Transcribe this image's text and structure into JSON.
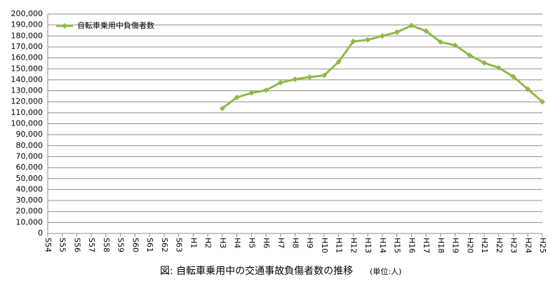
{
  "chart_data": {
    "type": "line",
    "categories": [
      "S54",
      "S55",
      "S56",
      "S57",
      "S58",
      "S59",
      "S60",
      "S61",
      "S62",
      "S63",
      "H1",
      "H2",
      "H3",
      "H4",
      "H5",
      "H6",
      "H7",
      "H8",
      "H9",
      "H10",
      "H11",
      "H12",
      "H13",
      "H14",
      "H15",
      "H16",
      "H17",
      "H18",
      "H19",
      "H20",
      "H21",
      "H22",
      "H23",
      "H24",
      "H25"
    ],
    "series": [
      {
        "name": "自転車乗用中負傷者数",
        "color": "#8fb848",
        "values": [
          null,
          null,
          null,
          null,
          null,
          null,
          null,
          null,
          null,
          null,
          null,
          null,
          114000,
          124000,
          128000,
          130500,
          137500,
          140500,
          142500,
          144000,
          156500,
          175000,
          176500,
          180000,
          183500,
          189500,
          184500,
          174500,
          171500,
          162500,
          155500,
          151000,
          143000,
          131500,
          120000
        ]
      }
    ],
    "ylim": [
      0,
      200000
    ],
    "yticks": [
      {
        "value": 0,
        "label": "0"
      },
      {
        "value": 10000,
        "label": "10,000"
      },
      {
        "value": 20000,
        "label": "20,000"
      },
      {
        "value": 30000,
        "label": "30,000"
      },
      {
        "value": 40000,
        "label": "40,000"
      },
      {
        "value": 50000,
        "label": "50,000"
      },
      {
        "value": 60000,
        "label": "60,000"
      },
      {
        "value": 70000,
        "label": "70,000"
      },
      {
        "value": 80000,
        "label": "80,000"
      },
      {
        "value": 90000,
        "label": "90,000"
      },
      {
        "value": 100000,
        "label": "100,000"
      },
      {
        "value": 110000,
        "label": "110,000"
      },
      {
        "value": 120000,
        "label": "120,000"
      },
      {
        "value": 130000,
        "label": "130,000"
      },
      {
        "value": 140000,
        "label": "140,000"
      },
      {
        "value": 150000,
        "label": "150,000"
      },
      {
        "value": 160000,
        "label": "160,000"
      },
      {
        "value": 170000,
        "label": "170,000"
      },
      {
        "value": 180000,
        "label": "180,000"
      },
      {
        "value": 190000,
        "label": "190,000"
      },
      {
        "value": 200000,
        "label": "200,000"
      }
    ],
    "grid": true,
    "legend": "top-left",
    "caption": "図:  自転車乗用中の交通事故負傷者数の推移",
    "caption_unit": "(単位:人)"
  }
}
